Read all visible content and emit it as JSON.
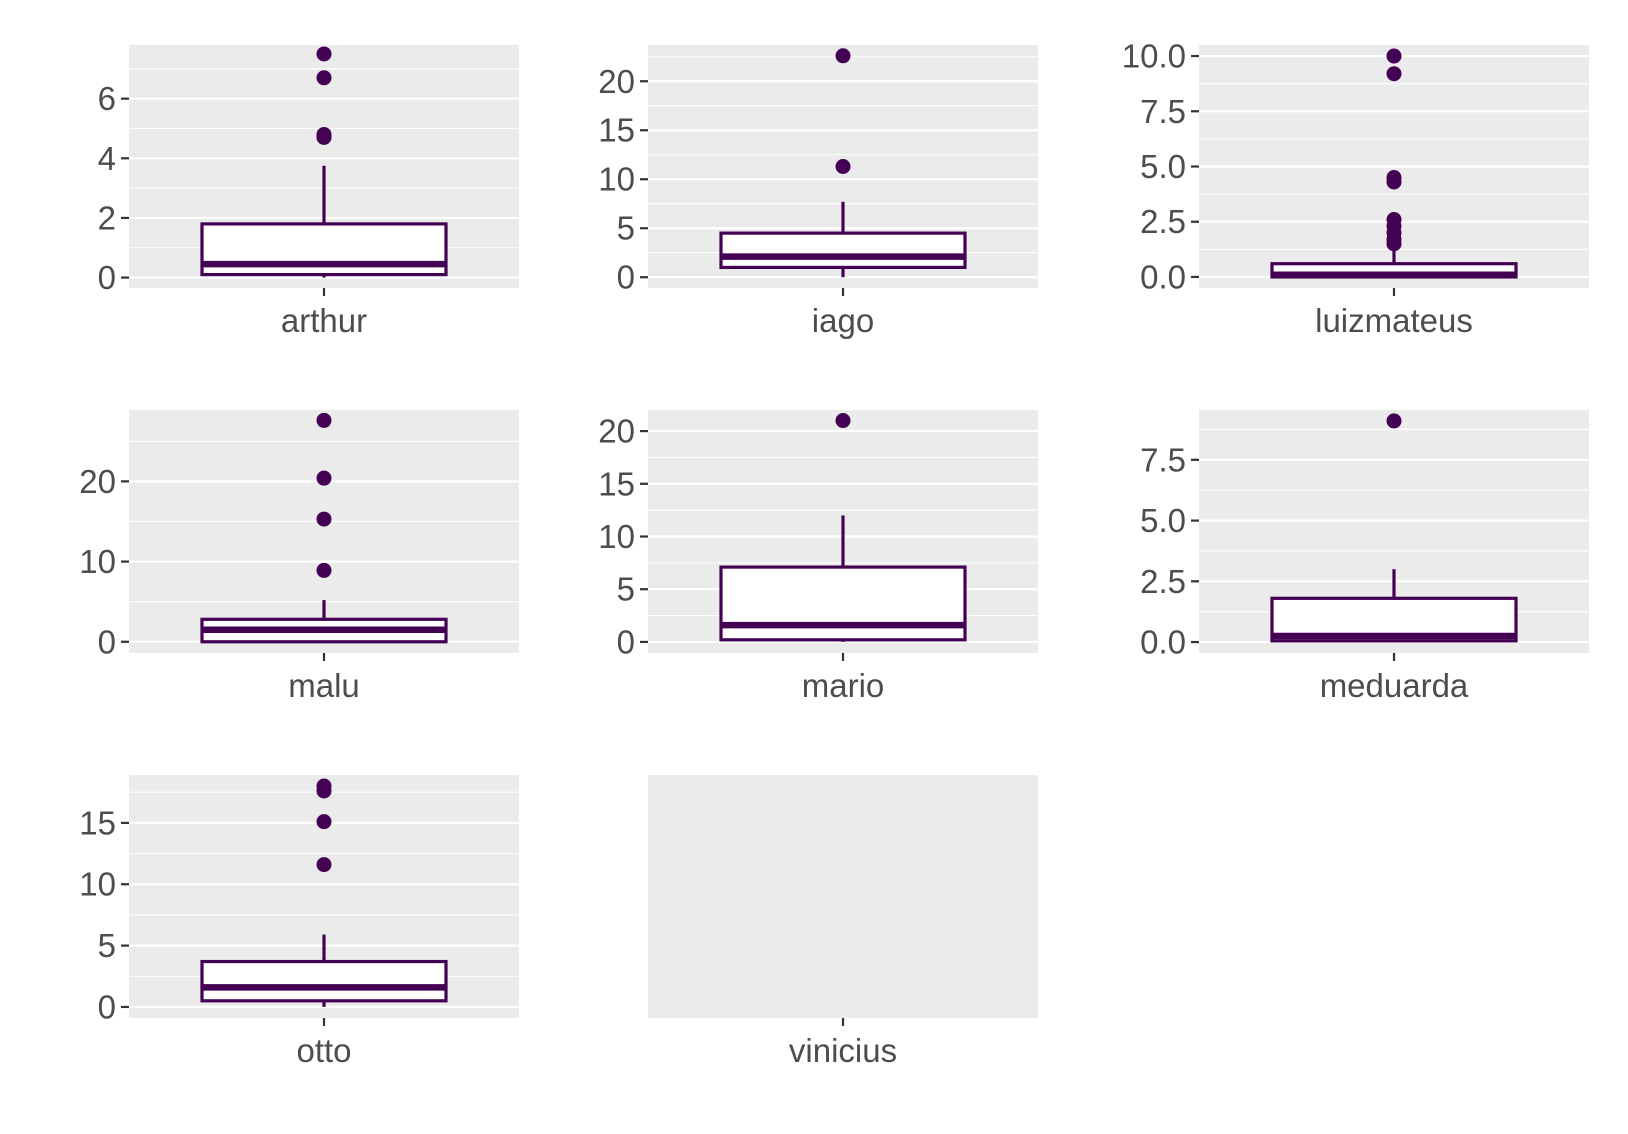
{
  "chart_data": [
    {
      "type": "boxplot",
      "category": "arthur",
      "y_ticks": [
        0,
        2,
        4,
        6
      ],
      "y_tick_labels": [
        "0",
        "2",
        "4",
        "6"
      ],
      "ylim": [
        -0.35,
        7.8
      ],
      "box": {
        "lower_whisker": 0.0,
        "q1": 0.1,
        "median": 0.45,
        "q3": 1.8,
        "upper_whisker": 3.75
      },
      "outliers": [
        4.7,
        4.8,
        6.7,
        7.5
      ]
    },
    {
      "type": "boxplot",
      "category": "iago",
      "y_ticks": [
        0,
        5,
        10,
        15,
        20
      ],
      "y_tick_labels": [
        "0",
        "5",
        "10",
        "15",
        "20"
      ],
      "ylim": [
        -1.1,
        23.7
      ],
      "box": {
        "lower_whisker": 0.0,
        "q1": 1.0,
        "median": 2.1,
        "q3": 4.5,
        "upper_whisker": 7.7
      },
      "outliers": [
        11.3,
        22.6
      ]
    },
    {
      "type": "boxplot",
      "category": "luizmateus",
      "y_ticks": [
        0.0,
        2.5,
        5.0,
        7.5,
        10.0
      ],
      "y_tick_labels": [
        "0.0",
        "2.5",
        "5.0",
        "7.5",
        "10.0"
      ],
      "ylim": [
        -0.5,
        10.5
      ],
      "box": {
        "lower_whisker": 0.0,
        "q1": 0.0,
        "median": 0.1,
        "q3": 0.6,
        "upper_whisker": 1.2
      },
      "outliers": [
        1.5,
        1.7,
        2.0,
        2.3,
        2.6,
        4.3,
        4.5,
        9.2,
        10.0
      ]
    },
    {
      "type": "boxplot",
      "category": "malu",
      "y_ticks": [
        0,
        10,
        20
      ],
      "y_tick_labels": [
        "0",
        "10",
        "20"
      ],
      "ylim": [
        -1.4,
        28.9
      ],
      "box": {
        "lower_whisker": 0.0,
        "q1": 0.0,
        "median": 1.5,
        "q3": 2.8,
        "upper_whisker": 5.2
      },
      "outliers": [
        8.9,
        15.3,
        20.4,
        27.6
      ]
    },
    {
      "type": "boxplot",
      "category": "mario",
      "y_ticks": [
        0,
        5,
        10,
        15,
        20
      ],
      "y_tick_labels": [
        "0",
        "5",
        "10",
        "15",
        "20"
      ],
      "ylim": [
        -1.05,
        22.0
      ],
      "box": {
        "lower_whisker": 0.0,
        "q1": 0.2,
        "median": 1.6,
        "q3": 7.1,
        "upper_whisker": 12.0
      },
      "outliers": [
        21.0
      ]
    },
    {
      "type": "boxplot",
      "category": "meduarda",
      "y_ticks": [
        0.0,
        2.5,
        5.0,
        7.5
      ],
      "y_tick_labels": [
        "0.0",
        "2.5",
        "5.0",
        "7.5"
      ],
      "ylim": [
        -0.45,
        9.55
      ],
      "box": {
        "lower_whisker": 0.0,
        "q1": 0.05,
        "median": 0.25,
        "q3": 1.8,
        "upper_whisker": 3.0
      },
      "outliers": [
        9.1
      ]
    },
    {
      "type": "boxplot",
      "category": "otto",
      "y_ticks": [
        0,
        5,
        10,
        15
      ],
      "y_tick_labels": [
        "0",
        "5",
        "10",
        "15"
      ],
      "ylim": [
        -0.9,
        18.9
      ],
      "box": {
        "lower_whisker": 0.0,
        "q1": 0.5,
        "median": 1.6,
        "q3": 3.7,
        "upper_whisker": 5.9
      },
      "outliers": [
        11.6,
        15.1,
        17.6,
        18.0
      ]
    },
    {
      "type": "boxplot",
      "category": "vinicius",
      "y_ticks": [],
      "y_tick_labels": [],
      "ylim": [
        0,
        1
      ],
      "box": null,
      "outliers": []
    }
  ],
  "colors": {
    "box_stroke": "#440154",
    "outlier_fill": "#440154",
    "panel_background": "#ebebeb",
    "grid": "#ffffff",
    "axis_text": "#4d4d4d",
    "tick": "#333333"
  },
  "facet_layout": "3 rows x 3 columns, 8 panels",
  "grid": true
}
